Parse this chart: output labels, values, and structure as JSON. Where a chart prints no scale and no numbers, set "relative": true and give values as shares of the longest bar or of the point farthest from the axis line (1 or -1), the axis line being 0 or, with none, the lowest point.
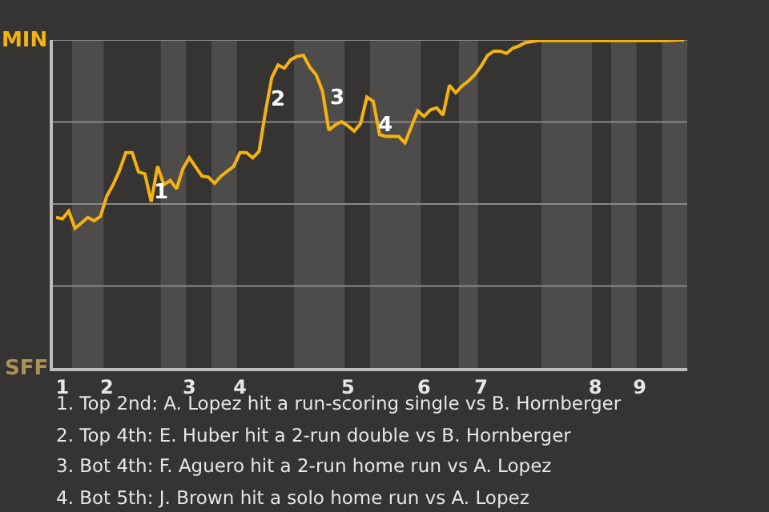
{
  "chart_data": {
    "type": "line",
    "relative": true,
    "categories": [
      null,
      "1",
      null,
      null,
      null,
      null,
      null,
      null,
      "2",
      null,
      null,
      null,
      null,
      null,
      null,
      null,
      null,
      null,
      null,
      null,
      null,
      "3",
      null,
      null,
      null,
      null,
      null,
      null,
      null,
      "4",
      null,
      null,
      null,
      null,
      null,
      null,
      null,
      null,
      null,
      null,
      null,
      null,
      null,
      null,
      null,
      null,
      "5",
      null,
      null,
      null,
      null,
      null,
      null,
      null,
      null,
      null,
      null,
      null,
      "6",
      null,
      null,
      null,
      null,
      null,
      null,
      null,
      null,
      "7",
      null,
      null,
      null,
      null,
      null,
      null,
      null,
      null,
      null,
      null,
      null,
      null,
      null,
      null,
      null,
      null,
      null,
      "8",
      null,
      null,
      null,
      null,
      null,
      null,
      "9",
      null,
      null,
      null,
      null,
      null,
      null,
      null
    ],
    "series": [
      {
        "color": "#f5b30f",
        "values": [
          0.459,
          0.455,
          0.478,
          0.426,
          0.442,
          0.459,
          0.449,
          0.462,
          0.524,
          0.559,
          0.602,
          0.657,
          0.657,
          0.598,
          0.592,
          0.507,
          0.615,
          0.559,
          0.572,
          0.546,
          0.608,
          0.641,
          0.613,
          0.585,
          0.582,
          0.563,
          0.585,
          0.6,
          0.615,
          0.657,
          0.657,
          0.641,
          0.66,
          0.78,
          0.885,
          0.924,
          0.914,
          0.94,
          0.95,
          0.953,
          0.917,
          0.894,
          0.844,
          0.725,
          0.741,
          0.751,
          0.738,
          0.722,
          0.745,
          0.826,
          0.813,
          0.712,
          0.706,
          0.706,
          0.706,
          0.686,
          0.735,
          0.784,
          0.767,
          0.787,
          0.793,
          0.771,
          0.862,
          0.839,
          0.86,
          0.875,
          0.894,
          0.92,
          0.953,
          0.966,
          0.966,
          0.959,
          0.975,
          0.982,
          0.992,
          0.995,
          0.998,
          0.998,
          0.998,
          0.998,
          0.998,
          0.998,
          0.998,
          0.998,
          0.998,
          0.998,
          0.998,
          0.998,
          0.998,
          0.998,
          0.998,
          0.998,
          0.998,
          0.998,
          0.998,
          0.998,
          0.998,
          0.999,
          1,
          1
        ]
      }
    ],
    "ref_lines": [
      {
        "axis": "y",
        "value": 0.25,
        "color": "#8a8987"
      },
      {
        "axis": "y",
        "value": 0.5,
        "color": "#8a8987"
      },
      {
        "axis": "y",
        "value": 0.75,
        "color": "#8a8987"
      },
      {
        "axis": "y",
        "value": 1,
        "color": "#8a8987"
      }
    ],
    "annotations": [
      "MIN",
      "SFF",
      "1",
      "2",
      "3",
      "4",
      "1. Top 2nd: A. Lopez hit a run-scoring single vs B. Hornberger",
      "2. Top 4th: E. Huber hit a 2-run double vs B. Hornberger",
      "3. Bot 4th: F. Aguero hit a 2-run home run vs A. Lopez",
      "4. Bot 5th: J. Brown hit a solo home run vs A. Lopez"
    ]
  }
}
